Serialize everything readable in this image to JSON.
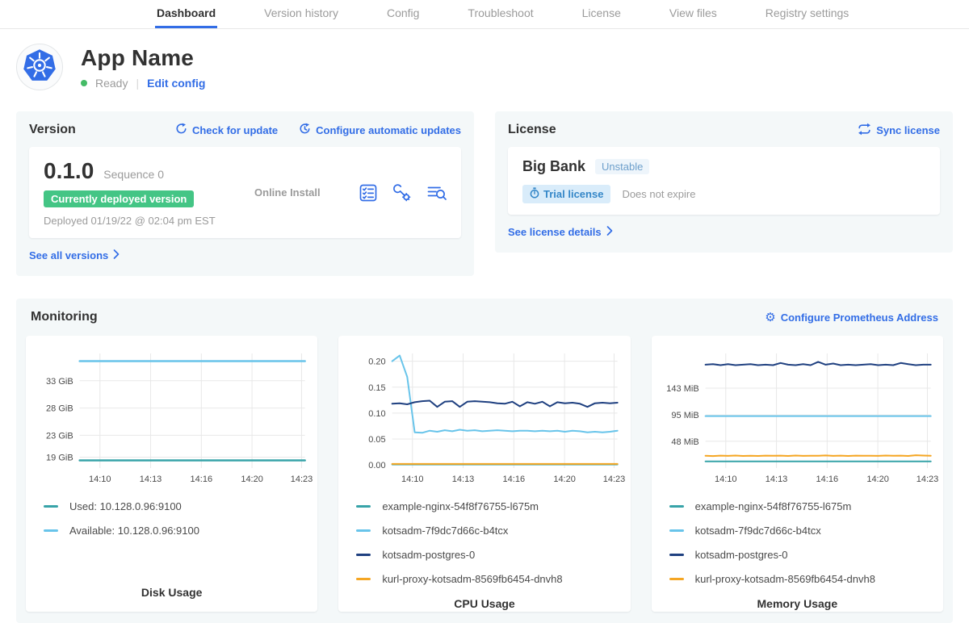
{
  "nav": {
    "tabs": [
      {
        "label": "Dashboard",
        "active": true
      },
      {
        "label": "Version history",
        "active": false
      },
      {
        "label": "Config",
        "active": false
      },
      {
        "label": "Troubleshoot",
        "active": false
      },
      {
        "label": "License",
        "active": false
      },
      {
        "label": "View files",
        "active": false
      },
      {
        "label": "Registry settings",
        "active": false
      }
    ]
  },
  "app_header": {
    "title": "App Name",
    "status": "Ready",
    "edit_config_label": "Edit config"
  },
  "version_card": {
    "title": "Version",
    "check_for_update_label": "Check for update",
    "configure_auto_updates_label": "Configure automatic updates",
    "version_number": "0.1.0",
    "sequence_label": "Sequence 0",
    "deployed_badge": "Currently deployed version",
    "deployed_at": "Deployed 01/19/22 @ 02:04 pm EST",
    "install_type": "Online Install",
    "see_all_versions_label": "See all versions"
  },
  "license_card": {
    "title": "License",
    "sync_label": "Sync license",
    "customer_name": "Big Bank",
    "channel": "Unstable",
    "type_badge": "Trial license",
    "expiry": "Does not expire",
    "see_details_label": "See license details"
  },
  "monitoring": {
    "title": "Monitoring",
    "configure_prometheus_label": "Configure Prometheus Address"
  },
  "colors": {
    "accent_blue": "#326de6",
    "badge_green": "#44c585",
    "series_teal": "#37a3a8",
    "series_light_blue": "#68c4ea",
    "series_navy": "#1f4080",
    "series_orange": "#f5a623"
  },
  "chart_data": [
    {
      "type": "line",
      "title": "Disk Usage",
      "x_labels": [
        "14:10",
        "14:13",
        "14:16",
        "14:20",
        "14:23"
      ],
      "ylim": [
        17.0,
        38.0
      ],
      "yticks": [
        {
          "value": 19,
          "label": "19 GiB"
        },
        {
          "value": 23,
          "label": "23 GiB"
        },
        {
          "value": 28,
          "label": "28 GiB"
        },
        {
          "value": 33,
          "label": "33 GiB"
        }
      ],
      "series": [
        {
          "name": "Used: 10.128.0.96:9100",
          "color": "#37a3a8",
          "width": 2.5,
          "values": [
            18.4,
            18.4
          ]
        },
        {
          "name": "Available: 10.128.0.96:9100",
          "color": "#68c4ea",
          "width": 2.5,
          "values": [
            36.6,
            36.6
          ]
        }
      ]
    },
    {
      "type": "line",
      "title": "CPU Usage",
      "x_labels": [
        "14:10",
        "14:13",
        "14:16",
        "14:20",
        "14:23"
      ],
      "ylim": [
        -0.006,
        0.215
      ],
      "yticks": [
        {
          "value": 0.0,
          "label": "0.00"
        },
        {
          "value": 0.05,
          "label": "0.05"
        },
        {
          "value": 0.1,
          "label": "0.10"
        },
        {
          "value": 0.15,
          "label": "0.15"
        },
        {
          "value": 0.2,
          "label": "0.20"
        }
      ],
      "series": [
        {
          "name": "example-nginx-54f8f76755-l675m",
          "color": "#37a3a8",
          "width": 2,
          "values": [
            0.001,
            0.001
          ]
        },
        {
          "name": "kotsadm-7f9dc7d66c-b4tcx",
          "color": "#68c4ea",
          "width": 2,
          "values": [
            0.2,
            0.211,
            0.17,
            0.063,
            0.062,
            0.066,
            0.064,
            0.067,
            0.065,
            0.068,
            0.066,
            0.067,
            0.065,
            0.066,
            0.067,
            0.066,
            0.065,
            0.066,
            0.066,
            0.065,
            0.066,
            0.065,
            0.066,
            0.064,
            0.066,
            0.065,
            0.063,
            0.064,
            0.063,
            0.064,
            0.066
          ]
        },
        {
          "name": "kotsadm-postgres-0",
          "color": "#1f4080",
          "width": 2,
          "values": [
            0.118,
            0.119,
            0.117,
            0.121,
            0.123,
            0.124,
            0.112,
            0.122,
            0.123,
            0.112,
            0.122,
            0.123,
            0.122,
            0.121,
            0.119,
            0.118,
            0.122,
            0.113,
            0.121,
            0.118,
            0.122,
            0.113,
            0.121,
            0.119,
            0.12,
            0.118,
            0.112,
            0.119,
            0.12,
            0.119,
            0.12
          ]
        },
        {
          "name": "kurl-proxy-kotsadm-8569fb6454-dnvh8",
          "color": "#f5a623",
          "width": 2,
          "values": [
            0.002,
            0.002
          ]
        }
      ]
    },
    {
      "type": "line",
      "title": "Memory Usage",
      "x_labels": [
        "14:10",
        "14:13",
        "14:16",
        "14:20",
        "14:23"
      ],
      "ylim": [
        0,
        205
      ],
      "yticks": [
        {
          "value": 48,
          "label": "48 MiB"
        },
        {
          "value": 95,
          "label": "95 MiB"
        },
        {
          "value": 143,
          "label": "143 MiB"
        }
      ],
      "series": [
        {
          "name": "example-nginx-54f8f76755-l675m",
          "color": "#37a3a8",
          "width": 2,
          "values": [
            12,
            12
          ]
        },
        {
          "name": "kotsadm-7f9dc7d66c-b4tcx",
          "color": "#68c4ea",
          "width": 2,
          "values": [
            93,
            93
          ]
        },
        {
          "name": "kotsadm-postgres-0",
          "color": "#1f4080",
          "width": 2,
          "values": [
            185,
            186,
            184,
            186,
            184,
            185,
            186,
            184,
            185,
            184,
            188,
            185,
            184,
            186,
            184,
            190,
            185,
            187,
            184,
            185,
            184,
            185,
            186,
            184,
            185,
            184,
            188,
            186,
            184,
            185,
            185
          ]
        },
        {
          "name": "kurl-proxy-kotsadm-8569fb6454-dnvh8",
          "color": "#f5a623",
          "width": 2,
          "values": [
            22,
            21.5,
            22.2,
            21.8,
            22.4,
            21.7,
            22.1,
            21.6,
            22.3,
            21.9,
            22.2,
            21.7,
            22.4,
            21.8,
            22.1,
            21.9,
            22.5,
            21.8,
            22.2,
            21.7,
            22.3,
            21.9,
            22.1,
            21.8,
            22.4,
            21.9,
            22.2,
            21.7,
            23,
            22.4,
            22.1
          ]
        }
      ]
    }
  ]
}
